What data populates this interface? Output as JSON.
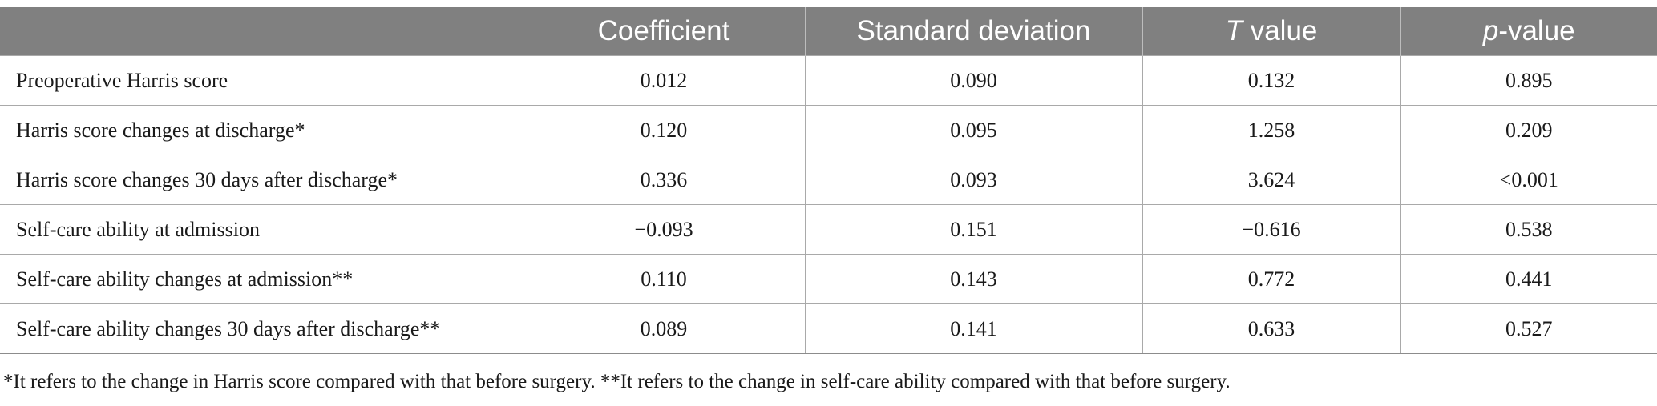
{
  "table": {
    "headers": {
      "empty": "",
      "coefficient": "Coefficient",
      "sd": "Standard deviation",
      "t_italic": "T",
      "t_rest": " value",
      "p_italic": "p",
      "p_rest": "-value"
    },
    "rows": [
      {
        "label": "Preoperative Harris score",
        "coef": "0.012",
        "sd": "0.090",
        "t": "0.132",
        "p": "0.895"
      },
      {
        "label": "Harris score changes at discharge*",
        "coef": "0.120",
        "sd": "0.095",
        "t": "1.258",
        "p": "0.209"
      },
      {
        "label": "Harris score changes 30 days after discharge*",
        "coef": "0.336",
        "sd": "0.093",
        "t": "3.624",
        "p": "<0.001"
      },
      {
        "label": "Self-care ability at admission",
        "coef": "−0.093",
        "sd": "0.151",
        "t": "−0.616",
        "p": "0.538"
      },
      {
        "label": "Self-care ability changes at admission**",
        "coef": "0.110",
        "sd": "0.143",
        "t": "0.772",
        "p": "0.441"
      },
      {
        "label": "Self-care ability changes 30 days after discharge**",
        "coef": "0.089",
        "sd": "0.141",
        "t": "0.633",
        "p": "0.527"
      }
    ]
  },
  "footnote": "*It refers to the change in Harris score compared with that before surgery. **It refers to the change in self-care ability compared with that before surgery."
}
